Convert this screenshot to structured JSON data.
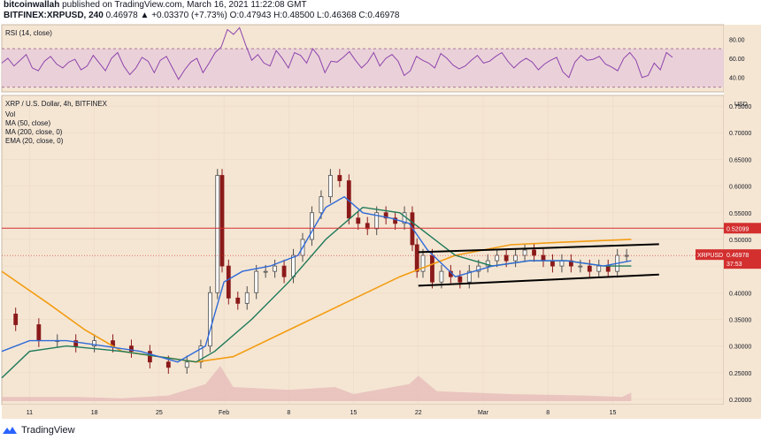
{
  "header": {
    "author": "bitcoinwallah",
    "published": "published on TradingView.com, March 16, 2021 11:22:08 GMT",
    "symbol_line": "BITFINEX:XRPUSD, 240",
    "change": "0.46978 ▲ +0.03370 (+7.73%)",
    "o_label": "O:",
    "o_val": "0.47943",
    "h_label": "H:",
    "h_val": "0.48500",
    "l_label": "L:",
    "l_val": "0.46368",
    "c_label": "C:",
    "c_val": "0.46978"
  },
  "footer": {
    "brand": "TradingView"
  },
  "colors": {
    "background": "#f5e6d3",
    "rsi_band": "#e8cdd9",
    "rsi_line": "#8e44ad",
    "ma50": "#1e7a5a",
    "ma200": "#f39c12",
    "ema20": "#2f6ad8",
    "candle_up": "#4d4d4d",
    "candle_down": "#8b1a1a",
    "resistance": "#d32f2f",
    "channel": "#000000",
    "volume": "#e6b7b7"
  },
  "chart_data": {
    "type": "candlestick",
    "title": "XRP / U.S. Dollar, 4h, BITFINEX",
    "indicators": [
      "Vol",
      "MA (50, close)",
      "MA (200, close, 0)",
      "EMA (20, close, 0)"
    ],
    "price_axis_label": "USD",
    "y_ticks": [
      "0.75000",
      "0.70000",
      "0.65000",
      "0.60000",
      "0.55000",
      "0.50000",
      "0.45000",
      "0.40000",
      "0.35000",
      "0.30000",
      "0.25000",
      "0.20000"
    ],
    "y_tick_values": [
      0.75,
      0.7,
      0.65,
      0.6,
      0.55,
      0.5,
      0.45,
      0.4,
      0.35,
      0.3,
      0.25,
      0.2
    ],
    "ylim": [
      0.19,
      0.77
    ],
    "x_ticks": [
      "11",
      "18",
      "25",
      "Feb",
      "8",
      "15",
      "22",
      "Mar",
      "8",
      "15"
    ],
    "x_tick_days": [
      0,
      7,
      14,
      21,
      28,
      35,
      42,
      49,
      56,
      63
    ],
    "xlim": [
      -3,
      75
    ],
    "last_price_label": "XRPUSD",
    "last_price": "0.46978",
    "countdown": "37:53",
    "resistance_label": "0.52099",
    "resistance": 0.52099,
    "channel_upper": [
      [
        42,
        0.476
      ],
      [
        68,
        0.491
      ]
    ],
    "channel_lower": [
      [
        42,
        0.413
      ],
      [
        68,
        0.434
      ]
    ],
    "price_path": [
      [
        -3,
        0.36
      ],
      [
        0,
        0.34
      ],
      [
        2,
        0.31
      ],
      [
        4,
        0.31
      ],
      [
        6,
        0.3
      ],
      [
        8,
        0.31
      ],
      [
        10,
        0.3
      ],
      [
        12,
        0.29
      ],
      [
        14,
        0.27
      ],
      [
        16,
        0.26
      ],
      [
        18,
        0.27
      ],
      [
        19,
        0.3
      ],
      [
        20,
        0.4
      ],
      [
        20.6,
        0.62
      ],
      [
        21,
        0.45
      ],
      [
        22,
        0.39
      ],
      [
        23,
        0.38
      ],
      [
        24,
        0.4
      ],
      [
        25,
        0.44
      ],
      [
        26,
        0.44
      ],
      [
        27,
        0.45
      ],
      [
        28,
        0.43
      ],
      [
        29,
        0.47
      ],
      [
        30,
        0.5
      ],
      [
        31,
        0.55
      ],
      [
        32,
        0.58
      ],
      [
        33,
        0.62
      ],
      [
        34,
        0.61
      ],
      [
        35,
        0.54
      ],
      [
        36,
        0.53
      ],
      [
        37,
        0.52
      ],
      [
        38,
        0.55
      ],
      [
        39,
        0.54
      ],
      [
        40,
        0.53
      ],
      [
        41,
        0.55
      ],
      [
        41.7,
        0.49
      ],
      [
        42,
        0.44
      ],
      [
        43,
        0.47
      ],
      [
        44,
        0.42
      ],
      [
        45,
        0.44
      ],
      [
        46,
        0.43
      ],
      [
        47,
        0.42
      ],
      [
        48,
        0.44
      ],
      [
        49,
        0.45
      ],
      [
        50,
        0.46
      ],
      [
        51,
        0.47
      ],
      [
        52,
        0.46
      ],
      [
        53,
        0.47
      ],
      [
        54,
        0.48
      ],
      [
        55,
        0.47
      ],
      [
        56,
        0.46
      ],
      [
        57,
        0.45
      ],
      [
        58,
        0.46
      ],
      [
        59,
        0.45
      ],
      [
        60,
        0.45
      ],
      [
        61,
        0.44
      ],
      [
        62,
        0.45
      ],
      [
        63,
        0.44
      ],
      [
        64,
        0.47
      ],
      [
        65,
        0.47
      ]
    ],
    "ma50_path": [
      [
        -3,
        0.24
      ],
      [
        0,
        0.29
      ],
      [
        4,
        0.3
      ],
      [
        10,
        0.29
      ],
      [
        14,
        0.28
      ],
      [
        18,
        0.27
      ],
      [
        20,
        0.29
      ],
      [
        24,
        0.35
      ],
      [
        28,
        0.42
      ],
      [
        32,
        0.5
      ],
      [
        36,
        0.56
      ],
      [
        40,
        0.55
      ],
      [
        43,
        0.51
      ],
      [
        46,
        0.47
      ],
      [
        50,
        0.45
      ],
      [
        54,
        0.46
      ],
      [
        58,
        0.46
      ],
      [
        62,
        0.45
      ],
      [
        65,
        0.45
      ]
    ],
    "ma200_path": [
      [
        -3,
        0.44
      ],
      [
        2,
        0.38
      ],
      [
        6,
        0.33
      ],
      [
        10,
        0.29
      ],
      [
        14,
        0.28
      ],
      [
        18,
        0.27
      ],
      [
        22,
        0.28
      ],
      [
        28,
        0.33
      ],
      [
        34,
        0.38
      ],
      [
        40,
        0.43
      ],
      [
        46,
        0.47
      ],
      [
        52,
        0.49
      ],
      [
        58,
        0.495
      ],
      [
        65,
        0.5
      ]
    ],
    "ema20_path": [
      [
        -3,
        0.29
      ],
      [
        0,
        0.31
      ],
      [
        4,
        0.31
      ],
      [
        8,
        0.3
      ],
      [
        12,
        0.29
      ],
      [
        16,
        0.27
      ],
      [
        19,
        0.3
      ],
      [
        21,
        0.42
      ],
      [
        23,
        0.44
      ],
      [
        26,
        0.45
      ],
      [
        29,
        0.47
      ],
      [
        32,
        0.56
      ],
      [
        34,
        0.58
      ],
      [
        36,
        0.55
      ],
      [
        39,
        0.54
      ],
      [
        41,
        0.53
      ],
      [
        43,
        0.48
      ],
      [
        46,
        0.43
      ],
      [
        50,
        0.45
      ],
      [
        54,
        0.46
      ],
      [
        58,
        0.46
      ],
      [
        62,
        0.45
      ],
      [
        65,
        0.46
      ]
    ],
    "volume_path": [
      [
        -3,
        0.03
      ],
      [
        5,
        0.03
      ],
      [
        10,
        0.02
      ],
      [
        15,
        0.04
      ],
      [
        19,
        0.12
      ],
      [
        20.6,
        0.25
      ],
      [
        22,
        0.1
      ],
      [
        28,
        0.08
      ],
      [
        33,
        0.1
      ],
      [
        35,
        0.05
      ],
      [
        41,
        0.12
      ],
      [
        42,
        0.18
      ],
      [
        44,
        0.07
      ],
      [
        52,
        0.05
      ],
      [
        60,
        0.04
      ],
      [
        64,
        0.03
      ],
      [
        65,
        0.06
      ]
    ],
    "rsi": {
      "label": "RSI (14, close)",
      "ticks": [
        "80.00",
        "60.00",
        "40.00"
      ],
      "tick_values": [
        80,
        60,
        40
      ],
      "band": [
        30,
        70
      ],
      "ylim": [
        25,
        95
      ],
      "values": [
        55,
        60,
        52,
        58,
        64,
        50,
        47,
        57,
        62,
        54,
        50,
        56,
        59,
        48,
        52,
        63,
        55,
        47,
        60,
        66,
        52,
        43,
        50,
        61,
        57,
        45,
        58,
        62,
        50,
        38,
        48,
        56,
        60,
        45,
        55,
        66,
        72,
        90,
        85,
        92,
        74,
        58,
        64,
        55,
        52,
        68,
        60,
        50,
        66,
        63,
        55,
        70,
        62,
        45,
        57,
        56,
        61,
        67,
        58,
        50,
        56,
        66,
        52,
        60,
        64,
        57,
        42,
        47,
        62,
        58,
        55,
        50,
        65,
        60,
        53,
        49,
        52,
        58,
        63,
        55,
        57,
        62,
        66,
        57,
        50,
        56,
        60,
        56,
        48,
        54,
        58,
        61,
        46,
        40,
        56,
        63,
        58,
        59,
        62,
        54,
        51,
        47,
        60,
        66,
        58,
        40,
        42,
        55,
        48,
        66,
        61
      ]
    }
  }
}
